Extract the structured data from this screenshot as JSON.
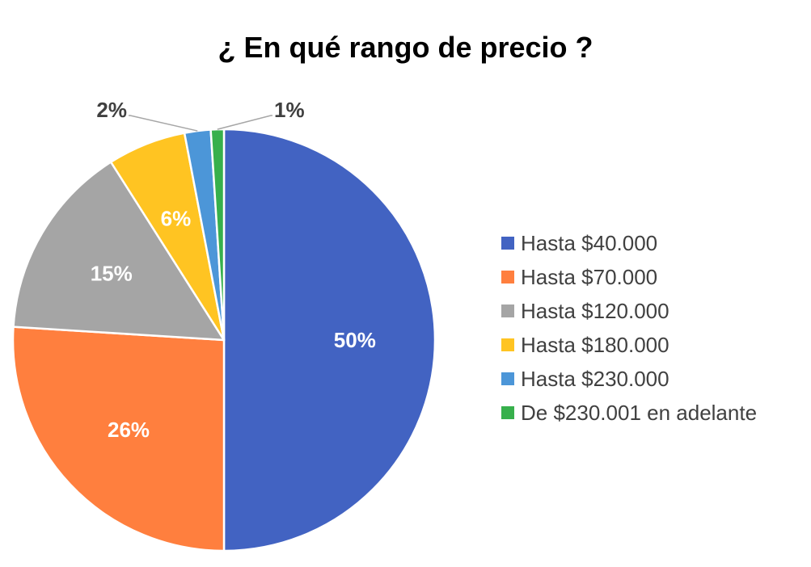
{
  "chart_data": {
    "type": "pie",
    "title": "¿ En qué rango de precio ?",
    "unit": "%",
    "legend_position": "right",
    "categories": [
      "Hasta $40.000",
      "Hasta $70.000",
      "Hasta $120.000",
      "Hasta $180.000",
      "Hasta $230.000",
      "De $230.001 en adelante"
    ],
    "values": [
      50,
      26,
      15,
      6,
      2,
      1
    ],
    "data_labels": [
      "50%",
      "26%",
      "15%",
      "6%",
      "2%",
      "1%"
    ],
    "colors": [
      "#4263C2",
      "#FF7F3E",
      "#A5A5A5",
      "#FFC422",
      "#4C96D8",
      "#37B04C"
    ]
  }
}
